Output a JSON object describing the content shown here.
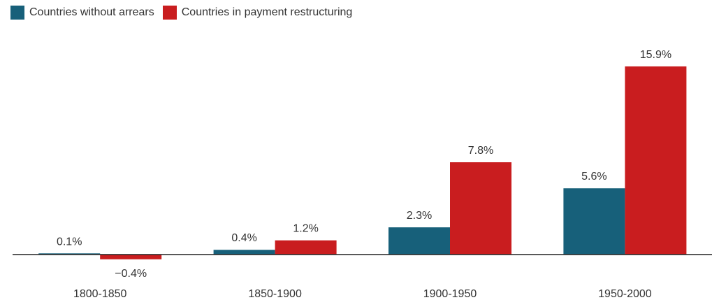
{
  "chart_data": {
    "type": "bar",
    "title": "",
    "xlabel": "",
    "ylabel": "",
    "categories": [
      "1800-1850",
      "1850-1900",
      "1900-1950",
      "1950-2000"
    ],
    "series": [
      {
        "name": "Countries without arrears",
        "color": "#17607A",
        "values": [
          0.1,
          0.4,
          2.3,
          5.6
        ],
        "labels": [
          "0.1%",
          "0.4%",
          "2.3%",
          "5.6%"
        ]
      },
      {
        "name": "Countries in payment restructuring",
        "color": "#C91D1F",
        "values": [
          -0.4,
          1.2,
          7.8,
          15.9
        ],
        "labels": [
          "−0.4%",
          "1.2%",
          "7.8%",
          "15.9%"
        ]
      }
    ],
    "ylim": [
      -0.4,
      15.9
    ],
    "grid": false,
    "legend_position": "top-left",
    "value_label_suffix": "%"
  }
}
